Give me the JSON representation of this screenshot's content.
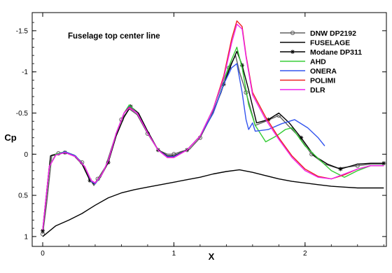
{
  "chart_data": {
    "type": "line",
    "annotation": "Fuselage top center line",
    "xlabel": "X",
    "ylabel": "Cp",
    "xlim": [
      -0.08,
      2.62
    ],
    "ylim": [
      1.12,
      -1.72
    ],
    "y_inverted": true,
    "grid": false,
    "legend_position": "top-right",
    "x_ticks": [
      0,
      1,
      2
    ],
    "x_tick_labels": [
      "0",
      "1",
      "2"
    ],
    "y_ticks": [
      -1.5,
      -1,
      -0.5,
      0,
      0.5,
      1
    ],
    "y_tick_labels": [
      "-1.5",
      "-1",
      "-0.5",
      "0",
      "0.5",
      "1"
    ],
    "series": [
      {
        "name": "DNW DP2192",
        "color": "#606060",
        "marker": "circle",
        "points": [
          [
            0.0,
            0.97
          ],
          [
            0.03,
            0.6
          ],
          [
            0.07,
            0.01
          ],
          [
            0.12,
            -0.01
          ],
          [
            0.17,
            -0.03
          ],
          [
            0.24,
            0.01
          ],
          [
            0.3,
            0.1
          ],
          [
            0.36,
            0.3
          ],
          [
            0.39,
            0.38
          ],
          [
            0.42,
            0.3
          ],
          [
            0.48,
            0.15
          ],
          [
            0.55,
            -0.2
          ],
          [
            0.6,
            -0.42
          ],
          [
            0.66,
            -0.55
          ],
          [
            0.72,
            -0.48
          ],
          [
            0.8,
            -0.25
          ],
          [
            0.88,
            -0.05
          ],
          [
            0.95,
            0.0
          ],
          [
            1.0,
            0.0
          ],
          [
            1.05,
            -0.03
          ],
          [
            1.12,
            -0.06
          ],
          [
            1.2,
            -0.2
          ],
          [
            1.28,
            -0.45
          ],
          [
            1.36,
            -0.75
          ],
          [
            1.42,
            -1.05
          ],
          [
            1.47,
            -1.2
          ],
          [
            1.5,
            -1.0
          ],
          [
            1.55,
            -0.75
          ],
          [
            1.62,
            -0.35
          ],
          [
            1.7,
            -0.4
          ],
          [
            1.8,
            -0.47
          ],
          [
            1.87,
            -0.35
          ],
          [
            1.95,
            -0.22
          ],
          [
            2.05,
            0.0
          ],
          [
            2.15,
            0.12
          ],
          [
            2.25,
            0.17
          ],
          [
            2.4,
            0.14
          ],
          [
            2.5,
            0.12
          ],
          [
            2.6,
            0.12
          ]
        ]
      },
      {
        "name": "FUSELAGE",
        "color": "#000000",
        "marker": "none",
        "points": [
          [
            0.0,
            1.0
          ],
          [
            0.1,
            0.87
          ],
          [
            0.2,
            0.8
          ],
          [
            0.3,
            0.72
          ],
          [
            0.4,
            0.62
          ],
          [
            0.5,
            0.53
          ],
          [
            0.6,
            0.47
          ],
          [
            0.7,
            0.43
          ],
          [
            0.8,
            0.4
          ],
          [
            0.9,
            0.37
          ],
          [
            1.0,
            0.34
          ],
          [
            1.1,
            0.31
          ],
          [
            1.2,
            0.28
          ],
          [
            1.3,
            0.24
          ],
          [
            1.4,
            0.21
          ],
          [
            1.5,
            0.19
          ],
          [
            1.6,
            0.22
          ],
          [
            1.7,
            0.26
          ],
          [
            1.8,
            0.3
          ],
          [
            1.9,
            0.33
          ],
          [
            2.0,
            0.35
          ],
          [
            2.1,
            0.37
          ],
          [
            2.2,
            0.39
          ],
          [
            2.3,
            0.4
          ],
          [
            2.4,
            0.41
          ],
          [
            2.5,
            0.41
          ],
          [
            2.6,
            0.41
          ]
        ]
      },
      {
        "name": "Modane DP311",
        "color": "#000000",
        "marker": "star",
        "points": [
          [
            0.0,
            0.93
          ],
          [
            0.06,
            0.02
          ],
          [
            0.12,
            0.0
          ],
          [
            0.17,
            -0.02
          ],
          [
            0.24,
            0.02
          ],
          [
            0.3,
            0.12
          ],
          [
            0.36,
            0.32
          ],
          [
            0.39,
            0.36
          ],
          [
            0.44,
            0.28
          ],
          [
            0.5,
            0.1
          ],
          [
            0.56,
            -0.22
          ],
          [
            0.62,
            -0.45
          ],
          [
            0.67,
            -0.58
          ],
          [
            0.73,
            -0.5
          ],
          [
            0.8,
            -0.28
          ],
          [
            0.88,
            -0.05
          ],
          [
            0.95,
            0.02
          ],
          [
            1.0,
            0.02
          ],
          [
            1.1,
            -0.05
          ],
          [
            1.2,
            -0.22
          ],
          [
            1.3,
            -0.5
          ],
          [
            1.38,
            -0.85
          ],
          [
            1.44,
            -1.1
          ],
          [
            1.48,
            -1.25
          ],
          [
            1.52,
            -1.08
          ],
          [
            1.57,
            -0.78
          ],
          [
            1.63,
            -0.38
          ],
          [
            1.72,
            -0.42
          ],
          [
            1.8,
            -0.5
          ],
          [
            1.88,
            -0.38
          ],
          [
            1.97,
            -0.2
          ],
          [
            2.07,
            0.02
          ],
          [
            2.17,
            0.12
          ],
          [
            2.27,
            0.18
          ],
          [
            2.4,
            0.12
          ],
          [
            2.5,
            0.11
          ],
          [
            2.6,
            0.11
          ]
        ]
      },
      {
        "name": "AHD",
        "color": "#33cc33",
        "marker": "none",
        "points": [
          [
            0.0,
            0.92
          ],
          [
            0.05,
            0.15
          ],
          [
            0.1,
            0.0
          ],
          [
            0.17,
            -0.03
          ],
          [
            0.25,
            0.02
          ],
          [
            0.32,
            0.15
          ],
          [
            0.37,
            0.33
          ],
          [
            0.4,
            0.36
          ],
          [
            0.45,
            0.25
          ],
          [
            0.5,
            0.08
          ],
          [
            0.56,
            -0.25
          ],
          [
            0.62,
            -0.5
          ],
          [
            0.66,
            -0.6
          ],
          [
            0.72,
            -0.5
          ],
          [
            0.8,
            -0.26
          ],
          [
            0.88,
            -0.05
          ],
          [
            0.95,
            0.03
          ],
          [
            1.0,
            0.03
          ],
          [
            1.1,
            -0.05
          ],
          [
            1.2,
            -0.22
          ],
          [
            1.3,
            -0.55
          ],
          [
            1.38,
            -0.9
          ],
          [
            1.44,
            -1.15
          ],
          [
            1.48,
            -1.3
          ],
          [
            1.52,
            -1.05
          ],
          [
            1.57,
            -0.6
          ],
          [
            1.62,
            -0.35
          ],
          [
            1.7,
            -0.15
          ],
          [
            1.78,
            -0.22
          ],
          [
            1.85,
            -0.3
          ],
          [
            1.9,
            -0.32
          ],
          [
            2.0,
            -0.1
          ],
          [
            2.1,
            0.05
          ],
          [
            2.2,
            0.2
          ],
          [
            2.3,
            0.28
          ],
          [
            2.4,
            0.2
          ],
          [
            2.5,
            0.14
          ],
          [
            2.6,
            0.14
          ]
        ]
      },
      {
        "name": "ONERA",
        "color": "#3355ee",
        "marker": "none",
        "points": [
          [
            0.0,
            0.92
          ],
          [
            0.05,
            0.15
          ],
          [
            0.1,
            0.01
          ],
          [
            0.17,
            -0.03
          ],
          [
            0.25,
            0.02
          ],
          [
            0.32,
            0.15
          ],
          [
            0.37,
            0.33
          ],
          [
            0.4,
            0.36
          ],
          [
            0.45,
            0.25
          ],
          [
            0.5,
            0.08
          ],
          [
            0.56,
            -0.25
          ],
          [
            0.62,
            -0.5
          ],
          [
            0.66,
            -0.58
          ],
          [
            0.72,
            -0.5
          ],
          [
            0.8,
            -0.26
          ],
          [
            0.88,
            -0.05
          ],
          [
            0.95,
            0.03
          ],
          [
            1.0,
            0.03
          ],
          [
            1.1,
            -0.05
          ],
          [
            1.2,
            -0.22
          ],
          [
            1.3,
            -0.5
          ],
          [
            1.38,
            -0.85
          ],
          [
            1.44,
            -1.05
          ],
          [
            1.48,
            -1.1
          ],
          [
            1.52,
            -0.75
          ],
          [
            1.55,
            -0.42
          ],
          [
            1.57,
            -0.3
          ],
          [
            1.6,
            -0.38
          ],
          [
            1.62,
            -0.28
          ],
          [
            1.72,
            -0.3
          ],
          [
            1.82,
            -0.37
          ],
          [
            1.92,
            -0.42
          ],
          [
            2.02,
            -0.32
          ],
          [
            2.1,
            -0.2
          ],
          [
            2.15,
            -0.1
          ]
        ]
      },
      {
        "name": "POLIMI",
        "color": "#ee2222",
        "marker": "none",
        "points": [
          [
            0.0,
            0.92
          ],
          [
            0.05,
            0.15
          ],
          [
            0.1,
            0.01
          ],
          [
            0.17,
            -0.02
          ],
          [
            0.25,
            0.03
          ],
          [
            0.32,
            0.15
          ],
          [
            0.37,
            0.32
          ],
          [
            0.4,
            0.35
          ],
          [
            0.45,
            0.25
          ],
          [
            0.5,
            0.08
          ],
          [
            0.56,
            -0.25
          ],
          [
            0.62,
            -0.5
          ],
          [
            0.66,
            -0.57
          ],
          [
            0.72,
            -0.5
          ],
          [
            0.8,
            -0.26
          ],
          [
            0.88,
            -0.05
          ],
          [
            0.95,
            0.04
          ],
          [
            1.0,
            0.04
          ],
          [
            1.1,
            -0.05
          ],
          [
            1.2,
            -0.22
          ],
          [
            1.3,
            -0.55
          ],
          [
            1.38,
            -0.95
          ],
          [
            1.44,
            -1.4
          ],
          [
            1.48,
            -1.62
          ],
          [
            1.52,
            -1.55
          ],
          [
            1.55,
            -1.2
          ],
          [
            1.6,
            -0.75
          ],
          [
            1.7,
            -0.45
          ],
          [
            1.8,
            -0.2
          ],
          [
            1.9,
            0.02
          ],
          [
            2.0,
            0.18
          ],
          [
            2.1,
            0.27
          ],
          [
            2.2,
            0.3
          ],
          [
            2.3,
            0.25
          ],
          [
            2.4,
            0.18
          ],
          [
            2.5,
            0.14
          ],
          [
            2.6,
            0.14
          ]
        ]
      },
      {
        "name": "DLR",
        "color": "#ee22ee",
        "marker": "none",
        "points": [
          [
            0.0,
            0.92
          ],
          [
            0.05,
            0.15
          ],
          [
            0.1,
            0.01
          ],
          [
            0.17,
            -0.02
          ],
          [
            0.25,
            0.03
          ],
          [
            0.32,
            0.15
          ],
          [
            0.37,
            0.32
          ],
          [
            0.4,
            0.35
          ],
          [
            0.45,
            0.25
          ],
          [
            0.5,
            0.08
          ],
          [
            0.56,
            -0.25
          ],
          [
            0.62,
            -0.5
          ],
          [
            0.66,
            -0.56
          ],
          [
            0.72,
            -0.5
          ],
          [
            0.8,
            -0.26
          ],
          [
            0.88,
            -0.05
          ],
          [
            0.95,
            0.04
          ],
          [
            1.0,
            0.04
          ],
          [
            1.1,
            -0.05
          ],
          [
            1.2,
            -0.22
          ],
          [
            1.3,
            -0.55
          ],
          [
            1.38,
            -0.92
          ],
          [
            1.44,
            -1.35
          ],
          [
            1.48,
            -1.58
          ],
          [
            1.52,
            -1.52
          ],
          [
            1.55,
            -1.18
          ],
          [
            1.6,
            -0.72
          ],
          [
            1.7,
            -0.42
          ],
          [
            1.8,
            -0.18
          ],
          [
            1.9,
            0.04
          ],
          [
            2.0,
            0.2
          ],
          [
            2.1,
            0.28
          ],
          [
            2.2,
            0.3
          ],
          [
            2.3,
            0.24
          ],
          [
            2.4,
            0.18
          ],
          [
            2.5,
            0.14
          ],
          [
            2.6,
            0.14
          ]
        ]
      }
    ]
  }
}
